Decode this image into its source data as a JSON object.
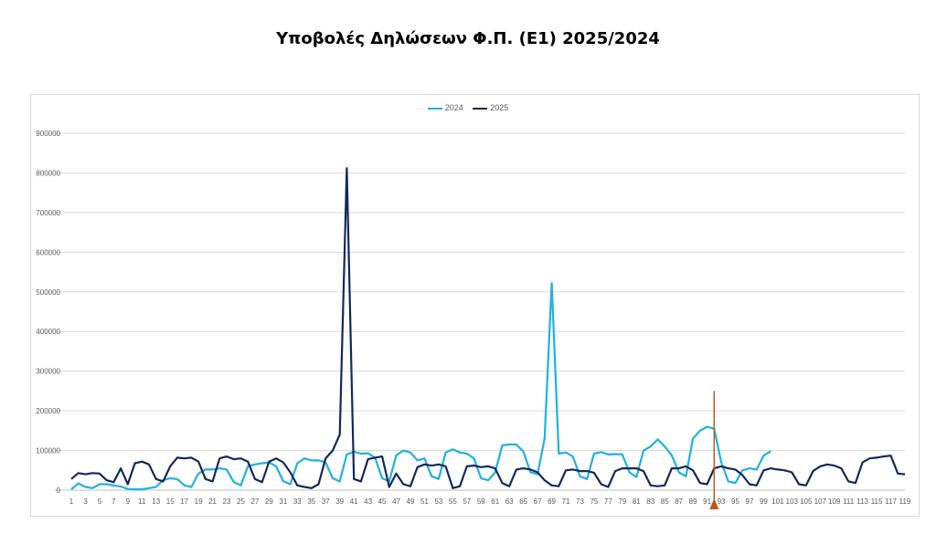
{
  "title": "Υποβολές Δηλώσεων Φ.Π. (Ε1) 2025/2024",
  "colors": {
    "s2024": "#1fb1e0",
    "s2025": "#14285a",
    "marker": "#c0561e",
    "grid": "#d9d9d9"
  },
  "chart_data": {
    "type": "line",
    "title": "Υποβολές Δηλώσεων Φ.Π. (Ε1) 2025/2024",
    "xlabel": "",
    "ylabel": "",
    "ylim": [
      0,
      900000
    ],
    "yticks": [
      0,
      100000,
      200000,
      300000,
      400000,
      500000,
      600000,
      700000,
      800000,
      900000
    ],
    "xlim": [
      1,
      119
    ],
    "xtick_labels": [
      "1",
      "3",
      "5",
      "7",
      "9",
      "11",
      "13",
      "15",
      "17",
      "19",
      "21",
      "23",
      "25",
      "27",
      "29",
      "31",
      "33",
      "35",
      "37",
      "39",
      "41",
      "43",
      "45",
      "47",
      "49",
      "51",
      "53",
      "55",
      "57",
      "59",
      "61",
      "63",
      "65",
      "67",
      "69",
      "71",
      "73",
      "75",
      "77",
      "79",
      "81",
      "83",
      "85",
      "87",
      "89",
      "91",
      "93",
      "95",
      "97",
      "99",
      "101",
      "103",
      "105",
      "107",
      "109",
      "111",
      "113",
      "115",
      "117",
      "119"
    ],
    "grid": "horizontal",
    "legend_position": "top-center",
    "marker_x": 92,
    "series": [
      {
        "name": "2024",
        "values": [
          2000,
          17000,
          8000,
          5000,
          15000,
          15000,
          12000,
          9000,
          3000,
          2000,
          2000,
          5000,
          8000,
          25000,
          30000,
          28000,
          12000,
          8000,
          42000,
          52000,
          52000,
          55000,
          52000,
          20000,
          12000,
          60000,
          65000,
          68000,
          70000,
          60000,
          22000,
          15000,
          68000,
          80000,
          75000,
          75000,
          70000,
          30000,
          22000,
          90000,
          97000,
          92000,
          93000,
          82000,
          30000,
          22000,
          88000,
          100000,
          95000,
          75000,
          80000,
          35000,
          28000,
          95000,
          103000,
          95000,
          92000,
          80000,
          30000,
          25000,
          45000,
          113000,
          115000,
          115000,
          97000,
          45000,
          40000,
          130000,
          522000,
          92000,
          95000,
          85000,
          35000,
          28000,
          92000,
          96000,
          90000,
          91000,
          90000,
          45000,
          33000,
          100000,
          110000,
          128000,
          110000,
          88000,
          45000,
          35000,
          130000,
          150000,
          160000,
          155000,
          70000,
          22000,
          18000,
          50000,
          55000,
          52000,
          87000,
          98000
        ]
      },
      {
        "name": "2025",
        "values": [
          28000,
          43000,
          40000,
          43000,
          42000,
          25000,
          20000,
          55000,
          15000,
          68000,
          72000,
          65000,
          28000,
          22000,
          60000,
          82000,
          80000,
          82000,
          72000,
          28000,
          22000,
          80000,
          85000,
          78000,
          80000,
          72000,
          28000,
          20000,
          72000,
          80000,
          70000,
          45000,
          12000,
          8000,
          5000,
          15000,
          80000,
          100000,
          140000,
          812000,
          28000,
          22000,
          78000,
          82000,
          85000,
          8000,
          42000,
          15000,
          10000,
          58000,
          65000,
          62000,
          65000,
          60000,
          5000,
          10000,
          60000,
          62000,
          58000,
          60000,
          55000,
          18000,
          10000,
          52000,
          55000,
          52000,
          45000,
          25000,
          12000,
          10000,
          50000,
          52000,
          48000,
          48000,
          44000,
          15000,
          8000,
          48000,
          55000,
          55000,
          55000,
          48000,
          12000,
          10000,
          12000,
          55000,
          55000,
          60000,
          50000,
          18000,
          15000,
          55000,
          60000,
          55000,
          52000,
          38000,
          15000,
          12000,
          50000,
          55000,
          52000,
          50000,
          45000,
          15000,
          12000,
          48000,
          60000,
          65000,
          62000,
          55000,
          22000,
          18000,
          70000,
          80000,
          82000,
          85000,
          87000,
          42000,
          40000
        ]
      }
    ]
  }
}
